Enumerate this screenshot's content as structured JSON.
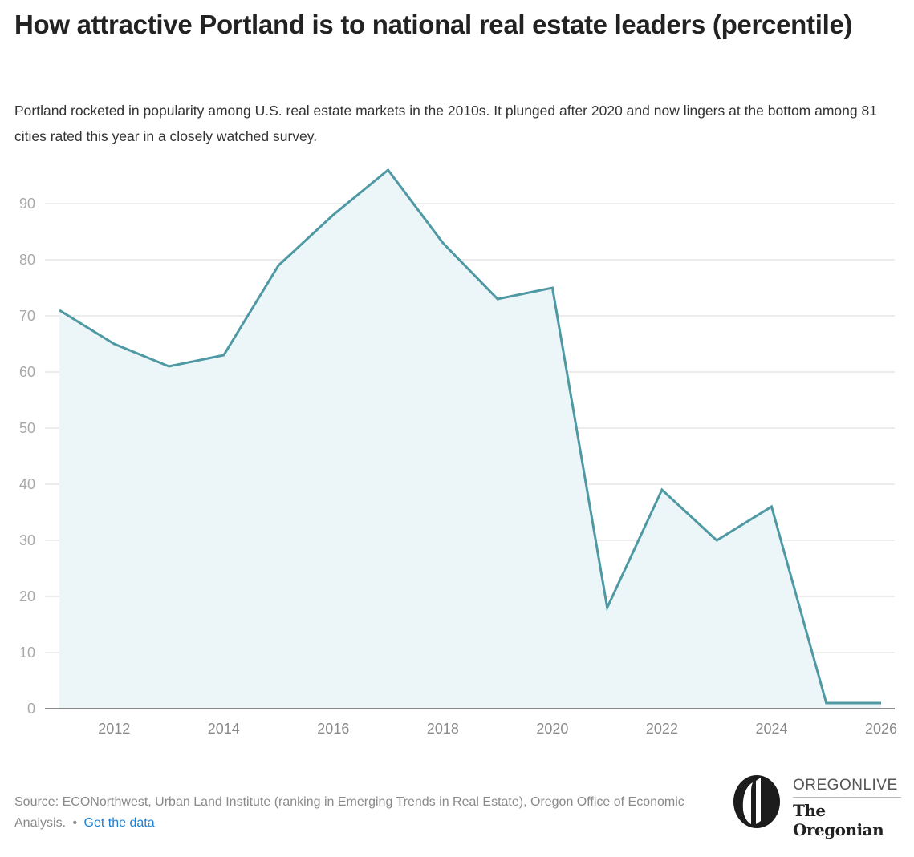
{
  "header": {
    "title": "How attractive Portland is to national real estate leaders (percentile)",
    "subtitle": "Portland rocketed in popularity among U.S. real estate markets in the 2010s. It plunged after 2020 and now lingers at the bottom among 81 cities rated this year in a closely watched survey."
  },
  "chart_data": {
    "type": "area",
    "title": "How attractive Portland is to national real estate leaders (percentile)",
    "xlabel": "",
    "ylabel": "",
    "x": [
      2011,
      2012,
      2013,
      2014,
      2015,
      2016,
      2017,
      2018,
      2019,
      2020,
      2021,
      2022,
      2023,
      2024,
      2025,
      2026
    ],
    "series": [
      {
        "name": "Portland percentile",
        "values": [
          71,
          65,
          61,
          63,
          79,
          88,
          96,
          83,
          73,
          75,
          18,
          39,
          30,
          36,
          1,
          1
        ]
      }
    ],
    "xlim": [
      2011,
      2026
    ],
    "ylim": [
      0,
      96
    ],
    "x_ticks": [
      "2012",
      "2014",
      "2016",
      "2018",
      "2020",
      "2022",
      "2024",
      "2026"
    ],
    "y_ticks": [
      "0",
      "10",
      "20",
      "30",
      "40",
      "50",
      "60",
      "70",
      "80",
      "90"
    ],
    "grid": true,
    "legend": "none",
    "colors": {
      "line": "#4e99a3",
      "fill": "#ecf6f8",
      "grid": "#e6e6e6",
      "axis": "#666666"
    }
  },
  "footer": {
    "source_text": "Source: ECONorthwest, Urban Land Institute (ranking in Emerging Trends in Real Estate), Oregon Office of Economic Analysis.",
    "separator": "•",
    "link_label": "Get the data",
    "link_color": "#1a7fd4"
  },
  "logo": {
    "top_text": "OREGONLIVE",
    "bottom_text": "The Oregonian",
    "icon": "oregonian-o-icon"
  }
}
